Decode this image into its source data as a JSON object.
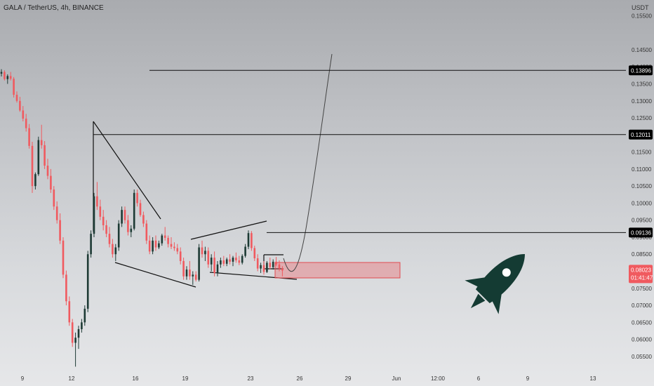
{
  "header": {
    "title": "GALA / TetherUS, 4h, BINANCE",
    "unit": "USDT"
  },
  "chart_data": {
    "type": "candlestick",
    "y_axis": {
      "range": [
        0.0525,
        0.1555
      ],
      "ticks": [
        "0.15500",
        "0.14500",
        "0.14000",
        "0.13500",
        "0.13000",
        "0.12500",
        "0.12000",
        "0.11500",
        "0.11000",
        "0.10500",
        "0.10000",
        "0.09500",
        "0.09000",
        "0.08500",
        "0.08000",
        "0.07500",
        "0.07000",
        "0.06500",
        "0.06000",
        "0.05500"
      ]
    },
    "x_axis": {
      "ticks": [
        "9",
        "12",
        "16",
        "19",
        "23",
        "26",
        "29",
        "Jun",
        "12:00",
        "6",
        "9",
        "13"
      ]
    },
    "levels": [
      {
        "value": 0.13896,
        "label": "0.13896"
      },
      {
        "value": 0.12011,
        "label": "0.12011"
      },
      {
        "value": 0.09136,
        "label": "0.09136"
      }
    ],
    "last_price": {
      "value": 0.08023,
      "label": "0.08023",
      "countdown": "01:41:47"
    },
    "colors": {
      "up": "#1d3a34",
      "down": "#f05a5f",
      "price_tag": "#f05a5f",
      "level_tag": "#000000",
      "rocket": "#143b33"
    },
    "candles": [
      [
        0.138,
        0.1393,
        0.1372,
        0.1385
      ],
      [
        0.1385,
        0.139,
        0.136,
        0.1364
      ],
      [
        0.1364,
        0.1378,
        0.135,
        0.1373
      ],
      [
        0.1373,
        0.1385,
        0.136,
        0.1365
      ],
      [
        0.1365,
        0.137,
        0.131,
        0.1318
      ],
      [
        0.1318,
        0.1328,
        0.1295,
        0.13
      ],
      [
        0.13,
        0.1312,
        0.1268,
        0.1272
      ],
      [
        0.1272,
        0.1285,
        0.124,
        0.1248
      ],
      [
        0.1248,
        0.1262,
        0.121,
        0.122
      ],
      [
        0.122,
        0.1232,
        0.116,
        0.1168
      ],
      [
        0.1168,
        0.118,
        0.103,
        0.105
      ],
      [
        0.105,
        0.109,
        0.104,
        0.1085
      ],
      [
        0.1085,
        0.1195,
        0.108,
        0.1185
      ],
      [
        0.1185,
        0.123,
        0.116,
        0.117
      ],
      [
        0.117,
        0.1182,
        0.11,
        0.111
      ],
      [
        0.111,
        0.113,
        0.107,
        0.108
      ],
      [
        0.108,
        0.11,
        0.103,
        0.104
      ],
      [
        0.104,
        0.105,
        0.098,
        0.099
      ],
      [
        0.099,
        0.1005,
        0.094,
        0.095
      ],
      [
        0.095,
        0.097,
        0.088,
        0.089
      ],
      [
        0.089,
        0.09,
        0.078,
        0.079
      ],
      [
        0.079,
        0.0802,
        0.07,
        0.0712
      ],
      [
        0.0712,
        0.0726,
        0.064,
        0.065
      ],
      [
        0.065,
        0.066,
        0.0578,
        0.059
      ],
      [
        0.059,
        0.062,
        0.052,
        0.0605
      ],
      [
        0.0605,
        0.064,
        0.0572,
        0.063
      ],
      [
        0.063,
        0.066,
        0.062,
        0.065
      ],
      [
        0.065,
        0.07,
        0.064,
        0.069
      ],
      [
        0.069,
        0.086,
        0.068,
        0.085
      ],
      [
        0.085,
        0.092,
        0.084,
        0.091
      ],
      [
        0.091,
        0.103,
        0.09,
        0.102
      ],
      [
        0.102,
        0.1062,
        0.098,
        0.099
      ],
      [
        0.099,
        0.101,
        0.095,
        0.096
      ],
      [
        0.096,
        0.098,
        0.092,
        0.0935
      ],
      [
        0.0935,
        0.095,
        0.09,
        0.091
      ],
      [
        0.091,
        0.093,
        0.087,
        0.088
      ],
      [
        0.088,
        0.0895,
        0.084,
        0.085
      ],
      [
        0.085,
        0.088,
        0.083,
        0.087
      ],
      [
        0.087,
        0.095,
        0.086,
        0.094
      ],
      [
        0.094,
        0.099,
        0.093,
        0.098
      ],
      [
        0.098,
        0.099,
        0.094,
        0.095
      ],
      [
        0.095,
        0.0965,
        0.0905,
        0.0915
      ],
      [
        0.0915,
        0.0935,
        0.09,
        0.0925
      ],
      [
        0.0925,
        0.104,
        0.092,
        0.103
      ],
      [
        0.103,
        0.104,
        0.099,
        0.1
      ],
      [
        0.1,
        0.101,
        0.096,
        0.0965
      ],
      [
        0.0965,
        0.0975,
        0.093,
        0.094
      ],
      [
        0.094,
        0.095,
        0.088,
        0.089
      ],
      [
        0.089,
        0.0905,
        0.085,
        0.0858
      ],
      [
        0.0858,
        0.09,
        0.085,
        0.089
      ],
      [
        0.089,
        0.0905,
        0.086,
        0.087
      ],
      [
        0.087,
        0.089,
        0.0865,
        0.0882
      ],
      [
        0.0882,
        0.091,
        0.0875,
        0.0905
      ],
      [
        0.0905,
        0.093,
        0.089,
        0.0898
      ],
      [
        0.0898,
        0.0905,
        0.087,
        0.088
      ],
      [
        0.088,
        0.09,
        0.0865,
        0.0872
      ],
      [
        0.0872,
        0.0885,
        0.086,
        0.0868
      ],
      [
        0.0868,
        0.088,
        0.085,
        0.0858
      ],
      [
        0.0858,
        0.087,
        0.082,
        0.083
      ],
      [
        0.083,
        0.084,
        0.0775,
        0.0785
      ],
      [
        0.0785,
        0.0815,
        0.0775,
        0.0805
      ],
      [
        0.0805,
        0.083,
        0.0775,
        0.0785
      ],
      [
        0.0785,
        0.08,
        0.076,
        0.079
      ],
      [
        0.079,
        0.08,
        0.077,
        0.0775
      ],
      [
        0.0775,
        0.088,
        0.077,
        0.087
      ],
      [
        0.087,
        0.089,
        0.084,
        0.085
      ],
      [
        0.085,
        0.0872,
        0.083,
        0.086
      ],
      [
        0.086,
        0.087,
        0.081,
        0.082
      ],
      [
        0.082,
        0.085,
        0.08,
        0.084
      ],
      [
        0.084,
        0.0858,
        0.0785,
        0.0795
      ],
      [
        0.0795,
        0.083,
        0.0785,
        0.082
      ],
      [
        0.082,
        0.084,
        0.081,
        0.0832
      ],
      [
        0.0832,
        0.0845,
        0.0815,
        0.0822
      ],
      [
        0.0822,
        0.084,
        0.0815,
        0.0835
      ],
      [
        0.0835,
        0.085,
        0.082,
        0.0828
      ],
      [
        0.0828,
        0.0845,
        0.0815,
        0.084
      ],
      [
        0.084,
        0.0855,
        0.0825,
        0.0832
      ],
      [
        0.0832,
        0.0845,
        0.0818,
        0.0825
      ],
      [
        0.0825,
        0.085,
        0.082,
        0.0845
      ],
      [
        0.0845,
        0.088,
        0.084,
        0.0872
      ],
      [
        0.0872,
        0.092,
        0.0865,
        0.0912
      ],
      [
        0.0912,
        0.0918,
        0.086,
        0.0868
      ],
      [
        0.0868,
        0.0875,
        0.083,
        0.0838
      ],
      [
        0.0838,
        0.085,
        0.08,
        0.0808
      ],
      [
        0.0808,
        0.0825,
        0.0795,
        0.0818
      ],
      [
        0.0818,
        0.083,
        0.079,
        0.0798
      ],
      [
        0.0798,
        0.083,
        0.0795,
        0.0825
      ],
      [
        0.0825,
        0.084,
        0.0805,
        0.0812
      ],
      [
        0.0812,
        0.0835,
        0.0805,
        0.0828
      ],
      [
        0.0828,
        0.0842,
        0.0815,
        0.082
      ],
      [
        0.082,
        0.0832,
        0.08,
        0.0808
      ],
      [
        0.0808,
        0.0815,
        0.0785,
        0.0802
      ]
    ]
  }
}
